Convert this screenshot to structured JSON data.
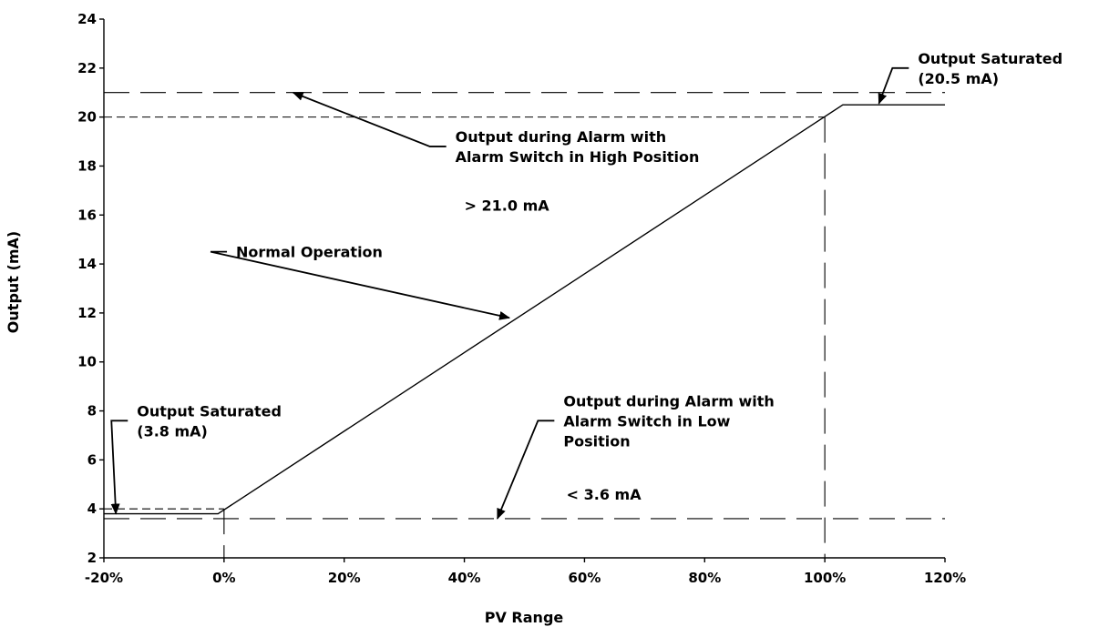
{
  "chart_data": {
    "type": "line",
    "title": "",
    "xlabel": "PV Range",
    "ylabel": "Output (mA)",
    "xlim": [
      -20,
      120
    ],
    "ylim": [
      2,
      24
    ],
    "x_ticks": [
      "-20%",
      "0%",
      "20%",
      "40%",
      "60%",
      "80%",
      "100%",
      "120%"
    ],
    "x_tick_values": [
      -20,
      0,
      20,
      40,
      60,
      80,
      100,
      120
    ],
    "y_ticks": [
      "2",
      "4",
      "6",
      "8",
      "10",
      "12",
      "14",
      "16",
      "18",
      "20",
      "22",
      "24"
    ],
    "y_tick_values": [
      2,
      4,
      6,
      8,
      10,
      12,
      14,
      16,
      18,
      20,
      22,
      24
    ],
    "grid": false,
    "legend": "none",
    "series": [
      {
        "x": [
          -20,
          -1,
          103,
          120
        ],
        "y": [
          3.8,
          3.8,
          20.5,
          20.5
        ],
        "style": "solid"
      }
    ],
    "reference_lines": [
      {
        "orientation": "horizontal",
        "y": 21.0,
        "x_range": [
          -20,
          120
        ],
        "style": "long-dash"
      },
      {
        "orientation": "horizontal",
        "y": 20.0,
        "x_range": [
          -20,
          100
        ],
        "style": "short-dash"
      },
      {
        "orientation": "horizontal",
        "y": 4.0,
        "x_range": [
          -20,
          0
        ],
        "style": "short-dash"
      },
      {
        "orientation": "horizontal",
        "y": 3.6,
        "x_range": [
          -20,
          120
        ],
        "style": "long-dash"
      },
      {
        "orientation": "vertical",
        "x": 0,
        "y_range": [
          2,
          4.0
        ],
        "style": "long-dash"
      },
      {
        "orientation": "vertical",
        "x": 100,
        "y_range": [
          2,
          20.0
        ],
        "style": "long-dash"
      }
    ],
    "annotations": [
      {
        "lines": [
          "Output Saturated",
          "(20.5 mA)"
        ],
        "text_x": 115.5,
        "text_y": 22.0,
        "arrow_to": [
          109,
          20.55
        ]
      },
      {
        "lines": [
          "Output during Alarm with",
          "Alarm Switch in High Position"
        ],
        "text_x": 38.5,
        "text_y": 18.8,
        "arrow_to": [
          11.5,
          21.0
        ]
      },
      {
        "lines": [
          "> 21.0 mA"
        ],
        "text_x": 40,
        "text_y": 16.4,
        "arrow_to": null
      },
      {
        "lines": [
          "Normal Operation"
        ],
        "text_x": 2,
        "text_y": 14.5,
        "arrow_to": [
          47.5,
          11.8
        ]
      },
      {
        "lines": [
          "Output Saturated",
          "(3.8 mA)"
        ],
        "text_x": -14.5,
        "text_y": 7.6,
        "arrow_to": [
          -18,
          3.8
        ]
      },
      {
        "lines": [
          "Output during Alarm with",
          "Alarm Switch in Low",
          "Position"
        ],
        "text_x": 56.5,
        "text_y": 7.6,
        "arrow_to": [
          45.5,
          3.6
        ]
      },
      {
        "lines": [
          "< 3.6 mA"
        ],
        "text_x": 57,
        "text_y": 4.6,
        "arrow_to": null
      }
    ]
  }
}
